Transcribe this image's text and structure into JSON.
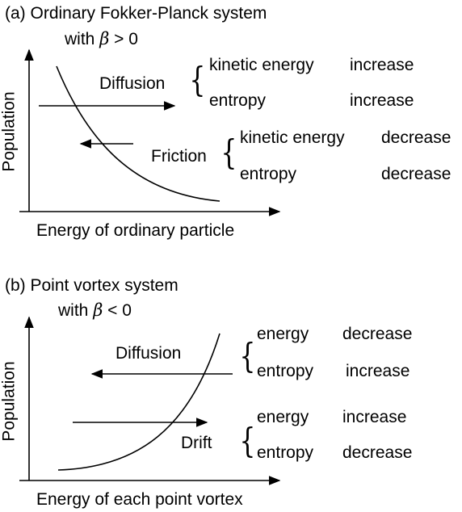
{
  "panel_a": {
    "title": "(a) Ordinary Fokker-Planck system",
    "subtitle_prefix": "with ",
    "beta_symbol": "β",
    "subtitle_suffix": " > 0",
    "ylabel": "Population",
    "xlabel": "Energy of ordinary particle",
    "curve": "decreasing",
    "diffusion": {
      "label": "Diffusion",
      "arrow_direction": "right",
      "rows": [
        {
          "quantity": "kinetic energy",
          "change": "increase"
        },
        {
          "quantity": "entropy",
          "change": "increase"
        }
      ]
    },
    "friction": {
      "label": "Friction",
      "arrow_direction": "left",
      "rows": [
        {
          "quantity": "kinetic energy",
          "change": "decrease"
        },
        {
          "quantity": "entropy",
          "change": "decrease"
        }
      ]
    }
  },
  "panel_b": {
    "title": "(b) Point vortex system",
    "subtitle_prefix": "with ",
    "beta_symbol": "β",
    "subtitle_suffix": " < 0",
    "ylabel": "Population",
    "xlabel": "Energy of each point vortex",
    "curve": "increasing",
    "diffusion": {
      "label": "Diffusion",
      "arrow_direction": "left",
      "rows": [
        {
          "quantity": "energy",
          "change": "decrease"
        },
        {
          "quantity": "entropy",
          "change": "increase"
        }
      ]
    },
    "drift": {
      "label": "Drift",
      "arrow_direction": "right",
      "rows": [
        {
          "quantity": "energy",
          "change": "increase"
        },
        {
          "quantity": "entropy",
          "change": "decrease"
        }
      ]
    }
  }
}
